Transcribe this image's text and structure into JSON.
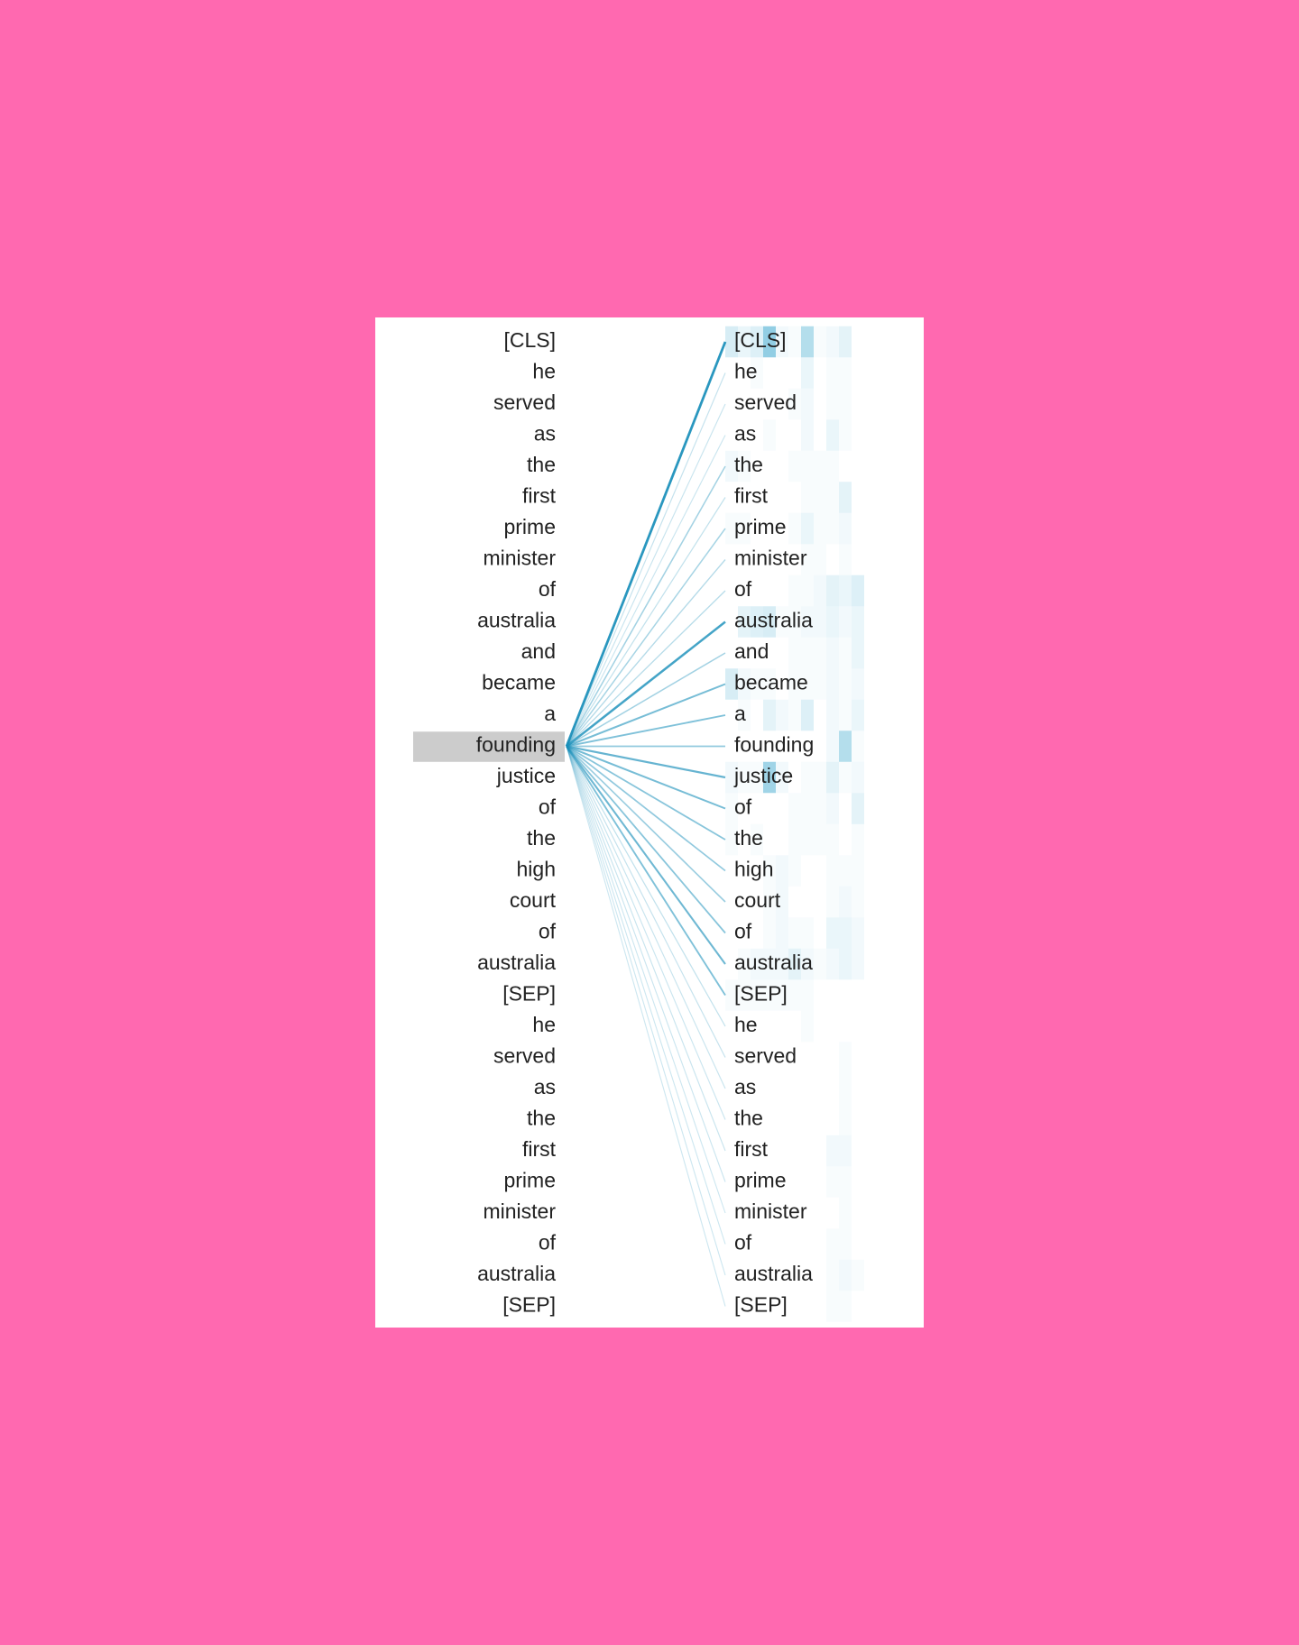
{
  "tokens": [
    "[CLS]",
    "he",
    "served",
    "as",
    "the",
    "first",
    "prime",
    "minister",
    "of",
    "australia",
    "and",
    "became",
    "a",
    "founding",
    "justice",
    "of",
    "the",
    "high",
    "court",
    "of",
    "australia",
    "[SEP]",
    "he",
    "served",
    "as",
    "the",
    "first",
    "prime",
    "minister",
    "of",
    "australia",
    "[SEP]"
  ],
  "selected_index": 13,
  "colors": {
    "background": "#ff69b0",
    "panel": "#ffffff",
    "line": "#1a8fba",
    "cell": "#4aaed2",
    "selected_bg": "#cccccc",
    "text": "#222222"
  },
  "attention_from_selected": [
    1.0,
    0.1,
    0.08,
    0.07,
    0.3,
    0.12,
    0.28,
    0.2,
    0.18,
    0.85,
    0.3,
    0.55,
    0.5,
    0.4,
    0.65,
    0.55,
    0.45,
    0.4,
    0.35,
    0.45,
    0.6,
    0.5,
    0.12,
    0.1,
    0.08,
    0.07,
    0.08,
    0.07,
    0.06,
    0.06,
    0.06,
    0.06
  ],
  "heads_grid": {
    "columns": 12,
    "intensity": [
      [
        0.3,
        0.15,
        0.25,
        0.8,
        0.1,
        0.05,
        0.55,
        0.05,
        0.1,
        0.2,
        0,
        0
      ],
      [
        0,
        0,
        0.05,
        0,
        0,
        0,
        0.15,
        0,
        0.05,
        0.05,
        0,
        0
      ],
      [
        0,
        0,
        0,
        0,
        0,
        0.05,
        0.1,
        0,
        0.05,
        0.05,
        0,
        0
      ],
      [
        0,
        0,
        0,
        0.05,
        0,
        0,
        0.1,
        0,
        0.15,
        0.05,
        0,
        0
      ],
      [
        0.1,
        0.05,
        0,
        0,
        0,
        0.05,
        0.05,
        0.05,
        0.05,
        0,
        0,
        0
      ],
      [
        0,
        0,
        0,
        0,
        0,
        0,
        0.05,
        0.05,
        0.05,
        0.2,
        0,
        0
      ],
      [
        0.05,
        0.05,
        0,
        0,
        0,
        0.05,
        0.15,
        0.05,
        0.05,
        0.1,
        0,
        0
      ],
      [
        0,
        0,
        0,
        0,
        0,
        0,
        0.05,
        0.05,
        0,
        0.05,
        0,
        0
      ],
      [
        0,
        0,
        0,
        0,
        0,
        0.05,
        0.05,
        0.1,
        0.2,
        0.15,
        0.25,
        0
      ],
      [
        0,
        0.2,
        0.25,
        0.3,
        0.05,
        0.05,
        0.1,
        0.1,
        0.15,
        0.1,
        0.15,
        0
      ],
      [
        0,
        0,
        0,
        0,
        0,
        0.05,
        0.05,
        0.05,
        0.1,
        0.05,
        0.15,
        0
      ],
      [
        0.3,
        0.1,
        0.05,
        0.05,
        0,
        0.05,
        0.05,
        0.05,
        0.1,
        0.05,
        0.1,
        0
      ],
      [
        0,
        0.05,
        0,
        0.2,
        0.1,
        0.05,
        0.25,
        0,
        0.1,
        0.05,
        0.15,
        0
      ],
      [
        0,
        0,
        0,
        0,
        0,
        0,
        0,
        0,
        0.1,
        0.55,
        0.05,
        0
      ],
      [
        0.1,
        0.05,
        0.05,
        0.7,
        0.1,
        0,
        0.05,
        0.05,
        0.2,
        0.05,
        0.1,
        0
      ],
      [
        0.05,
        0,
        0,
        0,
        0,
        0.05,
        0.05,
        0.05,
        0.1,
        0,
        0.2,
        0
      ],
      [
        0.05,
        0,
        0.05,
        0,
        0,
        0.05,
        0.05,
        0.05,
        0.05,
        0,
        0.05,
        0
      ],
      [
        0,
        0,
        0,
        0.05,
        0.1,
        0.05,
        0,
        0,
        0.05,
        0.05,
        0.05,
        0
      ],
      [
        0,
        0,
        0,
        0.05,
        0.1,
        0,
        0,
        0,
        0.05,
        0.1,
        0.05,
        0
      ],
      [
        0,
        0,
        0,
        0.05,
        0.1,
        0.05,
        0.05,
        0,
        0.15,
        0.15,
        0.1,
        0
      ],
      [
        0,
        0.05,
        0.1,
        0.1,
        0.1,
        0.2,
        0.1,
        0.05,
        0.1,
        0.15,
        0.1,
        0
      ],
      [
        0.05,
        0.05,
        0.05,
        0.05,
        0.05,
        0.05,
        0.05,
        0,
        0,
        0,
        0,
        0
      ],
      [
        0,
        0,
        0,
        0,
        0,
        0,
        0.05,
        0,
        0,
        0,
        0,
        0
      ],
      [
        0,
        0,
        0,
        0,
        0,
        0,
        0,
        0,
        0,
        0.05,
        0,
        0
      ],
      [
        0,
        0,
        0,
        0,
        0,
        0,
        0,
        0,
        0,
        0.05,
        0,
        0
      ],
      [
        0,
        0,
        0,
        0,
        0,
        0,
        0,
        0,
        0,
        0.05,
        0,
        0
      ],
      [
        0,
        0,
        0,
        0,
        0,
        0,
        0,
        0,
        0.1,
        0.1,
        0,
        0
      ],
      [
        0,
        0,
        0,
        0,
        0,
        0,
        0,
        0,
        0.05,
        0.05,
        0,
        0
      ],
      [
        0,
        0,
        0,
        0,
        0,
        0,
        0,
        0,
        0,
        0.05,
        0,
        0
      ],
      [
        0,
        0,
        0,
        0,
        0,
        0,
        0,
        0,
        0.05,
        0.05,
        0,
        0
      ],
      [
        0,
        0,
        0,
        0,
        0,
        0,
        0,
        0,
        0.05,
        0.1,
        0.05,
        0
      ],
      [
        0,
        0,
        0,
        0,
        0,
        0,
        0,
        0,
        0.05,
        0.05,
        0,
        0
      ]
    ]
  }
}
